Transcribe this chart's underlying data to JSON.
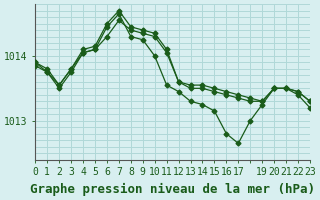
{
  "background_color": "#d8eff0",
  "grid_color": "#b0d8d8",
  "line_color": "#1a5c1a",
  "title": "Graphe pression niveau de la mer (hPa)",
  "ylabel_1013": 1013,
  "ylabel_1014": 1014,
  "xlim": [
    0,
    23
  ],
  "ylim": [
    1012.4,
    1014.8
  ],
  "series": {
    "line1": {
      "x": [
        0,
        1,
        2,
        3,
        4,
        5,
        6,
        7,
        8,
        9,
        10,
        11,
        12,
        13,
        14,
        15,
        16,
        17,
        18,
        19,
        20,
        21,
        22,
        23
      ],
      "y": [
        1013.9,
        1013.8,
        1013.55,
        1013.8,
        1014.05,
        1014.1,
        1014.3,
        1014.55,
        1014.4,
        1014.35,
        1014.3,
        1014.05,
        1013.6,
        1013.55,
        1013.55,
        1013.5,
        1013.45,
        1013.4,
        1013.35,
        1013.3,
        1013.5,
        1013.5,
        1013.45,
        1013.3
      ]
    },
    "line2": {
      "x": [
        0,
        1,
        2,
        3,
        4,
        5,
        6,
        7,
        8,
        9,
        10,
        11,
        12,
        13,
        14,
        15,
        16,
        17,
        18,
        19,
        20,
        21,
        22,
        23
      ],
      "y": [
        1013.9,
        1013.75,
        1013.55,
        1013.8,
        1014.1,
        1014.15,
        1014.5,
        1014.7,
        1014.45,
        1014.4,
        1014.35,
        1014.1,
        1013.6,
        1013.5,
        1013.5,
        1013.45,
        1013.4,
        1013.35,
        1013.3,
        1013.3,
        1013.5,
        1013.5,
        1013.45,
        1013.3
      ]
    },
    "line3": {
      "x": [
        0,
        1,
        2,
        3,
        4,
        5,
        6,
        7,
        8,
        9,
        10,
        11,
        12,
        13,
        14,
        15,
        16,
        17,
        18,
        19,
        20,
        21,
        22,
        23
      ],
      "y": [
        1013.85,
        1013.75,
        1013.5,
        1013.75,
        1014.05,
        1014.1,
        1014.45,
        1014.65,
        1014.3,
        1014.25,
        1014.0,
        1013.55,
        1013.45,
        1013.3,
        1013.25,
        1013.15,
        1012.8,
        1012.65,
        1013.0,
        1013.25,
        1013.5,
        1013.5,
        1013.4,
        1013.2
      ]
    }
  },
  "xtick_labels": [
    "0",
    "1",
    "2",
    "3",
    "4",
    "5",
    "6",
    "7",
    "8",
    "9",
    "10",
    "11",
    "12",
    "13",
    "14",
    "15",
    "16",
    "17",
    "",
    "19",
    "20",
    "21",
    "22",
    "23"
  ],
  "ytick_positions": [
    1013,
    1014
  ],
  "title_fontsize": 9,
  "tick_fontsize": 7
}
